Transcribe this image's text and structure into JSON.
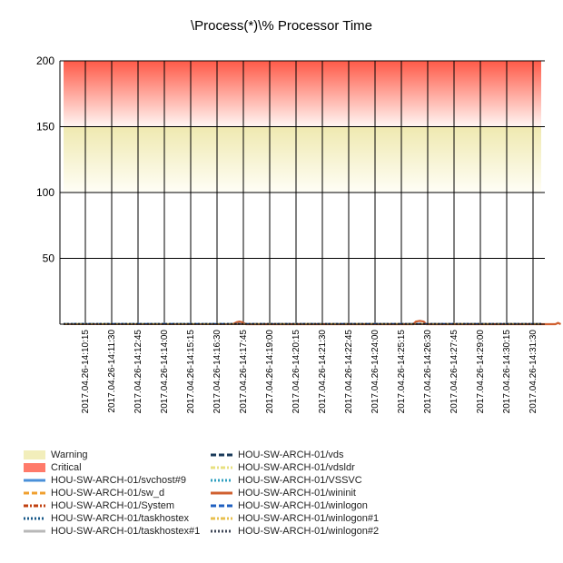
{
  "chart_data": {
    "type": "line",
    "title": "\\Process(*)\\% Processor Time",
    "xlabel": "",
    "ylabel": "",
    "ylim": [
      0,
      200
    ],
    "y_ticks": [
      "200",
      "150",
      "100",
      "50"
    ],
    "grid": true,
    "bands": [
      {
        "name": "Warning",
        "from": 100,
        "to": 150,
        "color": "#f2eebb"
      },
      {
        "name": "Critical",
        "from": 150,
        "to": 200,
        "color": "#ff6b5b"
      }
    ],
    "x_labels": [
      "2017.04.26-14:10:15",
      "2017.04.26-14:11:30",
      "2017.04.26-14:12:45",
      "2017.04.26-14:14:00",
      "2017.04.26-14:15:15",
      "2017.04.26-14:16:30",
      "2017.04.26-14:17:45",
      "2017.04.26-14:19:00",
      "2017.04.26-14:20:15",
      "2017.04.26-14:21:30",
      "2017.04.26-14:22:45",
      "2017.04.26-14:24:00",
      "2017.04.26-14:25:15",
      "2017.04.26-14:26:30",
      "2017.04.26-14:27:45",
      "2017.04.26-14:29:00",
      "2017.04.26-14:30:15",
      "2017.04.26-14:31:30"
    ],
    "series": [
      {
        "name": "HOU-SW-ARCH-01/svchost#9",
        "color": "#4a90d9",
        "dash": "solid",
        "values": []
      },
      {
        "name": "HOU-SW-ARCH-01/sw_d",
        "color": "#f0a030",
        "dash": "dash",
        "values": []
      },
      {
        "name": "HOU-SW-ARCH-01/System",
        "color": "#c04010",
        "dash": "dashdot",
        "values": []
      },
      {
        "name": "HOU-SW-ARCH-01/taskhostex",
        "color": "#1a5a8a",
        "dash": "dot",
        "values": []
      },
      {
        "name": "HOU-SW-ARCH-01/taskhostex#1",
        "color": "#b8b8b8",
        "dash": "solid",
        "values": []
      },
      {
        "name": "HOU-SW-ARCH-01/vds",
        "color": "#1a3a5a",
        "dash": "dash",
        "values": []
      },
      {
        "name": "HOU-SW-ARCH-01/vdsldr",
        "color": "#e8e080",
        "dash": "dashdot",
        "values": []
      },
      {
        "name": "HOU-SW-ARCH-01/VSSVC",
        "color": "#30a0c0",
        "dash": "dot",
        "values": []
      },
      {
        "name": "HOU-SW-ARCH-01/wininit",
        "color": "#d06030",
        "dash": "solid",
        "values": [
          [
            5.6,
            0
          ],
          [
            5.75,
            1.5
          ],
          [
            5.85,
            2
          ],
          [
            5.95,
            1.5
          ],
          [
            6.1,
            0
          ],
          [
            12.45,
            0
          ],
          [
            12.55,
            2
          ],
          [
            12.7,
            2.5
          ],
          [
            12.85,
            2
          ],
          [
            12.95,
            0
          ],
          [
            17.85,
            0
          ],
          [
            17.95,
            1
          ],
          [
            18.05,
            0
          ]
        ]
      },
      {
        "name": "HOU-SW-ARCH-01/winlogon",
        "color": "#2060c0",
        "dash": "dash",
        "values": []
      },
      {
        "name": "HOU-SW-ARCH-01/winlogon#1",
        "color": "#e8c050",
        "dash": "dashdot",
        "values": []
      },
      {
        "name": "HOU-SW-ARCH-01/winlogon#2",
        "color": "#404858",
        "dash": "dot",
        "values": []
      }
    ],
    "legend": {
      "placement": "bottom",
      "columns": [
        [
          "Warning",
          "Critical",
          "HOU-SW-ARCH-01/svchost#9",
          "HOU-SW-ARCH-01/sw_d",
          "HOU-SW-ARCH-01/System",
          "HOU-SW-ARCH-01/taskhostex",
          "HOU-SW-ARCH-01/taskhostex#1"
        ],
        [
          "HOU-SW-ARCH-01/vds",
          "HOU-SW-ARCH-01/vdsldr",
          "HOU-SW-ARCH-01/VSSVC",
          "HOU-SW-ARCH-01/wininit",
          "HOU-SW-ARCH-01/winlogon",
          "HOU-SW-ARCH-01/winlogon#1",
          "HOU-SW-ARCH-01/winlogon#2"
        ]
      ]
    }
  }
}
